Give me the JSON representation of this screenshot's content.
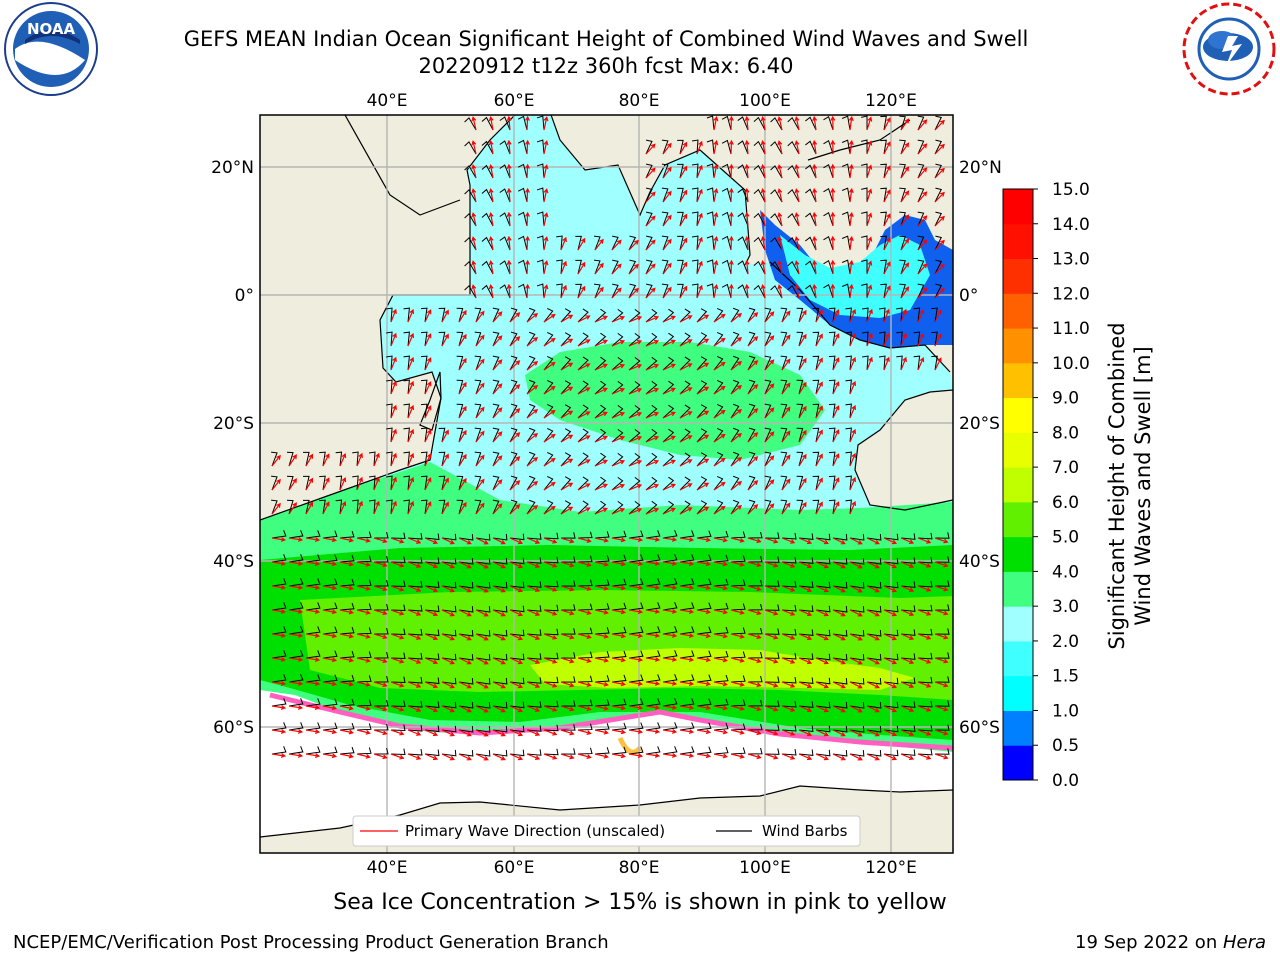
{
  "title": {
    "line1": "GEFS MEAN Indian Ocean Significant Height of Combined Wind Waves and Swell",
    "line2": "20220912 t12z 360h fcst   Max: 6.40"
  },
  "logos": {
    "left": {
      "icon": "noaa-logo",
      "text": "NOAA"
    },
    "right": {
      "icon": "nws-logo"
    }
  },
  "map": {
    "lon_ticks": [
      "40°E",
      "60°E",
      "80°E",
      "100°E",
      "120°E"
    ],
    "lat_ticks": [
      "20°N",
      "0°",
      "20°S",
      "40°S",
      "60°S"
    ],
    "colors": {
      "land": "#efedde",
      "ice_free_ocean": "#ffffff",
      "barb": "#000000",
      "wave_arrow": "#ff0000",
      "grid": "#b5b5b5"
    }
  },
  "colorbar": {
    "ticks": [
      "0.0",
      "0.5",
      "1.0",
      "1.5",
      "2.0",
      "3.0",
      "4.0",
      "5.0",
      "6.0",
      "7.0",
      "8.0",
      "9.0",
      "10.0",
      "11.0",
      "12.0",
      "13.0",
      "14.0",
      "15.0"
    ],
    "colors": [
      "#0000ff",
      "#0080ff",
      "#00ffff",
      "#40ffff",
      "#a0ffff",
      "#40ff80",
      "#00e000",
      "#60f000",
      "#c0ff00",
      "#e8ff00",
      "#ffff00",
      "#ffc000",
      "#ff9000",
      "#ff6000",
      "#ff3000",
      "#ff1000",
      "#ff0000"
    ],
    "label_line1": "Significant Height of Combined",
    "label_line2": "Wind Waves and Swell [m]"
  },
  "legend": {
    "wave": "Primary Wave Direction (unscaled)",
    "barbs": "Wind Barbs"
  },
  "ice_note": "Sea Ice Concentration > 15% is shown in pink to yellow",
  "footer": {
    "left": "NCEP/EMC/Verification Post Processing Product Generation Branch",
    "date": "19 Sep 2022 on ",
    "machine": "Hera"
  }
}
